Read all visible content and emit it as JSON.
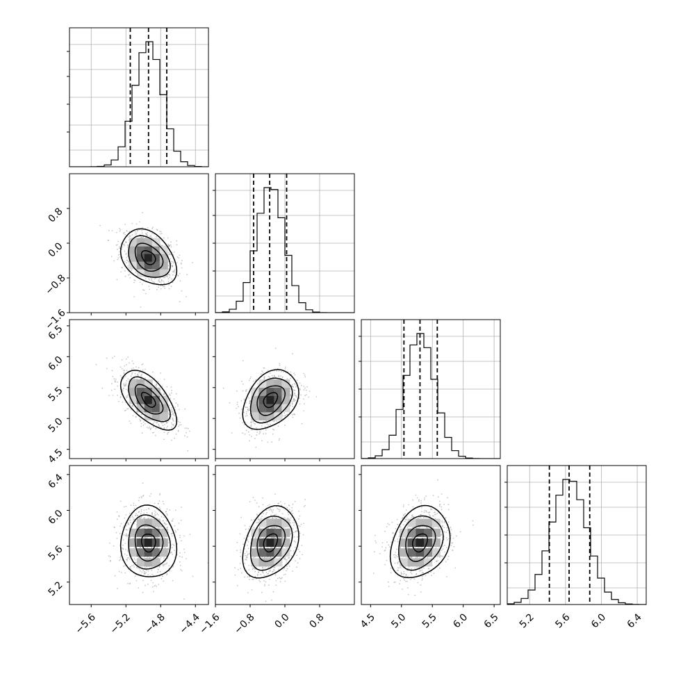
{
  "chart_data": {
    "type": "corner",
    "grid_on": true,
    "parameters": [
      {
        "index": 0,
        "range": [
          -5.85,
          -4.25
        ],
        "ticks": [
          -5.6,
          -5.2,
          -4.8,
          -4.4
        ],
        "tick_labels": [
          "−5.6",
          "−5.2",
          "−4.8",
          "−4.4"
        ],
        "quantiles": [
          -5.15,
          -4.94,
          -4.73
        ],
        "mean": -4.94,
        "sd": 0.16
      },
      {
        "index": 1,
        "range": [
          -1.6,
          1.6
        ],
        "ticks": [
          -1.6,
          -0.8,
          0.0,
          0.8
        ],
        "tick_labels": [
          "−1.6",
          "−0.8",
          "0.0",
          "0.8"
        ],
        "quantiles": [
          -0.72,
          -0.35,
          0.04
        ],
        "mean": -0.33,
        "sd": 0.32
      },
      {
        "index": 2,
        "range": [
          4.35,
          6.6
        ],
        "ticks": [
          4.5,
          5.0,
          5.5,
          6.0,
          6.5
        ],
        "tick_labels": [
          "4.5",
          "5.0",
          "5.5",
          "6.0",
          "6.5"
        ],
        "quantiles": [
          5.04,
          5.3,
          5.58
        ],
        "mean": 5.3,
        "sd": 0.24
      },
      {
        "index": 3,
        "range": [
          4.95,
          6.5
        ],
        "ticks": [
          5.2,
          5.6,
          6.0,
          6.4
        ],
        "tick_labels": [
          "5.2",
          "5.6",
          "6.0",
          "6.4"
        ],
        "quantiles": [
          5.42,
          5.64,
          5.87
        ],
        "mean": 5.64,
        "sd": 0.2
      }
    ],
    "correlations": [
      {
        "x": 0,
        "y": 1,
        "rho": -0.35
      },
      {
        "x": 0,
        "y": 2,
        "rho": -0.6
      },
      {
        "x": 1,
        "y": 2,
        "rho": 0.35
      },
      {
        "x": 0,
        "y": 3,
        "rho": -0.05
      },
      {
        "x": 1,
        "y": 3,
        "rho": 0.3
      },
      {
        "x": 2,
        "y": 3,
        "rho": 0.25
      }
    ],
    "contour_levels_sigma": [
      0.5,
      1.0,
      1.5,
      2.0
    ],
    "colors": {
      "hist": "#000000",
      "contour": "#000000",
      "scatter": "#a0a0a0",
      "density_dark": "#000000",
      "grid": "#b0b0b0"
    }
  }
}
